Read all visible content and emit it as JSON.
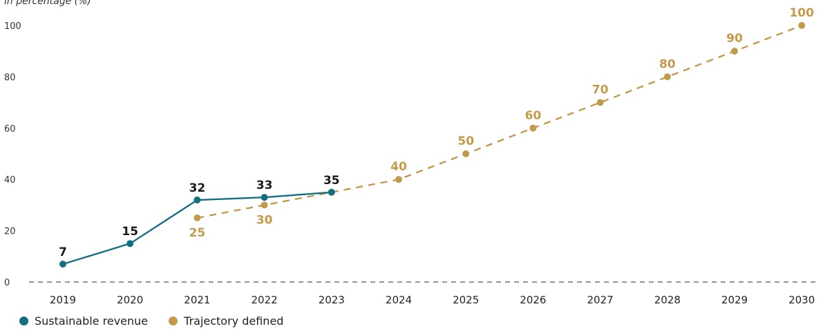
{
  "chart_data": {
    "type": "line",
    "ylabel": "in percentage (%)",
    "x": [
      "2019",
      "2020",
      "2021",
      "2022",
      "2023",
      "2024",
      "2025",
      "2026",
      "2027",
      "2028",
      "2029",
      "2030"
    ],
    "yticks": [
      0,
      20,
      40,
      60,
      80,
      100
    ],
    "ylim": [
      0,
      100
    ],
    "grid": false,
    "legend_position": "bottom-left",
    "series": [
      {
        "name": "Sustainable revenue",
        "color": "#127080",
        "style": "solid",
        "x": [
          "2019",
          "2020",
          "2021",
          "2022",
          "2023"
        ],
        "values": [
          7,
          15,
          32,
          33,
          35
        ],
        "labels": [
          "7",
          "15",
          "32",
          "33",
          "35"
        ]
      },
      {
        "name": "Trajectory defined",
        "color": "#c19a4a",
        "style": "dashed",
        "x": [
          "2021",
          "2022",
          "2023",
          "2024",
          "2025",
          "2026",
          "2027",
          "2028",
          "2029",
          "2030"
        ],
        "values": [
          25,
          30,
          35,
          40,
          50,
          60,
          70,
          80,
          90,
          100
        ],
        "labels": [
          "25",
          "30",
          null,
          "40",
          "50",
          "60",
          "70",
          "80",
          "90",
          "100"
        ]
      }
    ]
  }
}
